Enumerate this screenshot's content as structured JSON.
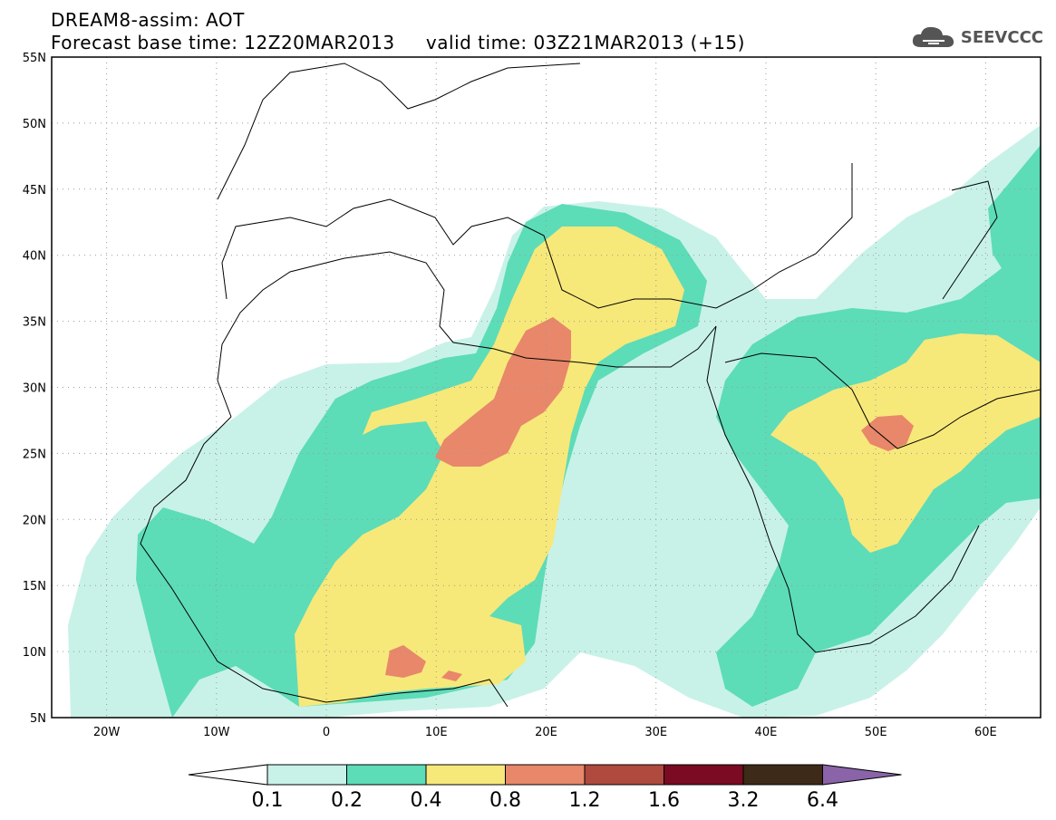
{
  "title": {
    "line1": "DREAM8-assim: AOT",
    "line2": "Forecast base time: 12Z20MAR2013     valid time: 03Z21MAR2013 (+15)"
  },
  "logo": {
    "text": "SEEVCCC",
    "icon": "cloud-icon"
  },
  "map": {
    "lon_range": [
      -25,
      65
    ],
    "lat_range": [
      5,
      55
    ],
    "lon_ticks": [
      "20W",
      "10W",
      "0",
      "10E",
      "20E",
      "30E",
      "40E",
      "50E",
      "60E"
    ],
    "lat_ticks": [
      "5N",
      "10N",
      "15N",
      "20N",
      "25N",
      "30N",
      "35N",
      "40N",
      "45N",
      "50N",
      "55N"
    ],
    "grid": "dotted"
  },
  "colorbar": {
    "labels": [
      "0.1",
      "0.2",
      "0.4",
      "0.8",
      "1.2",
      "1.6",
      "3.2",
      "6.4"
    ],
    "colors": [
      "#ffffff",
      "#c8f2e8",
      "#5ddcb8",
      "#f7e87a",
      "#e8876a",
      "#b04a3e",
      "#7a0b22",
      "#3d2a18",
      "#8a63a8"
    ]
  },
  "colors": {
    "level1": "#c8f2e8",
    "level2": "#5ddcb8",
    "level3": "#f7e87a",
    "level4": "#e8876a",
    "level5": "#d86a5c"
  }
}
